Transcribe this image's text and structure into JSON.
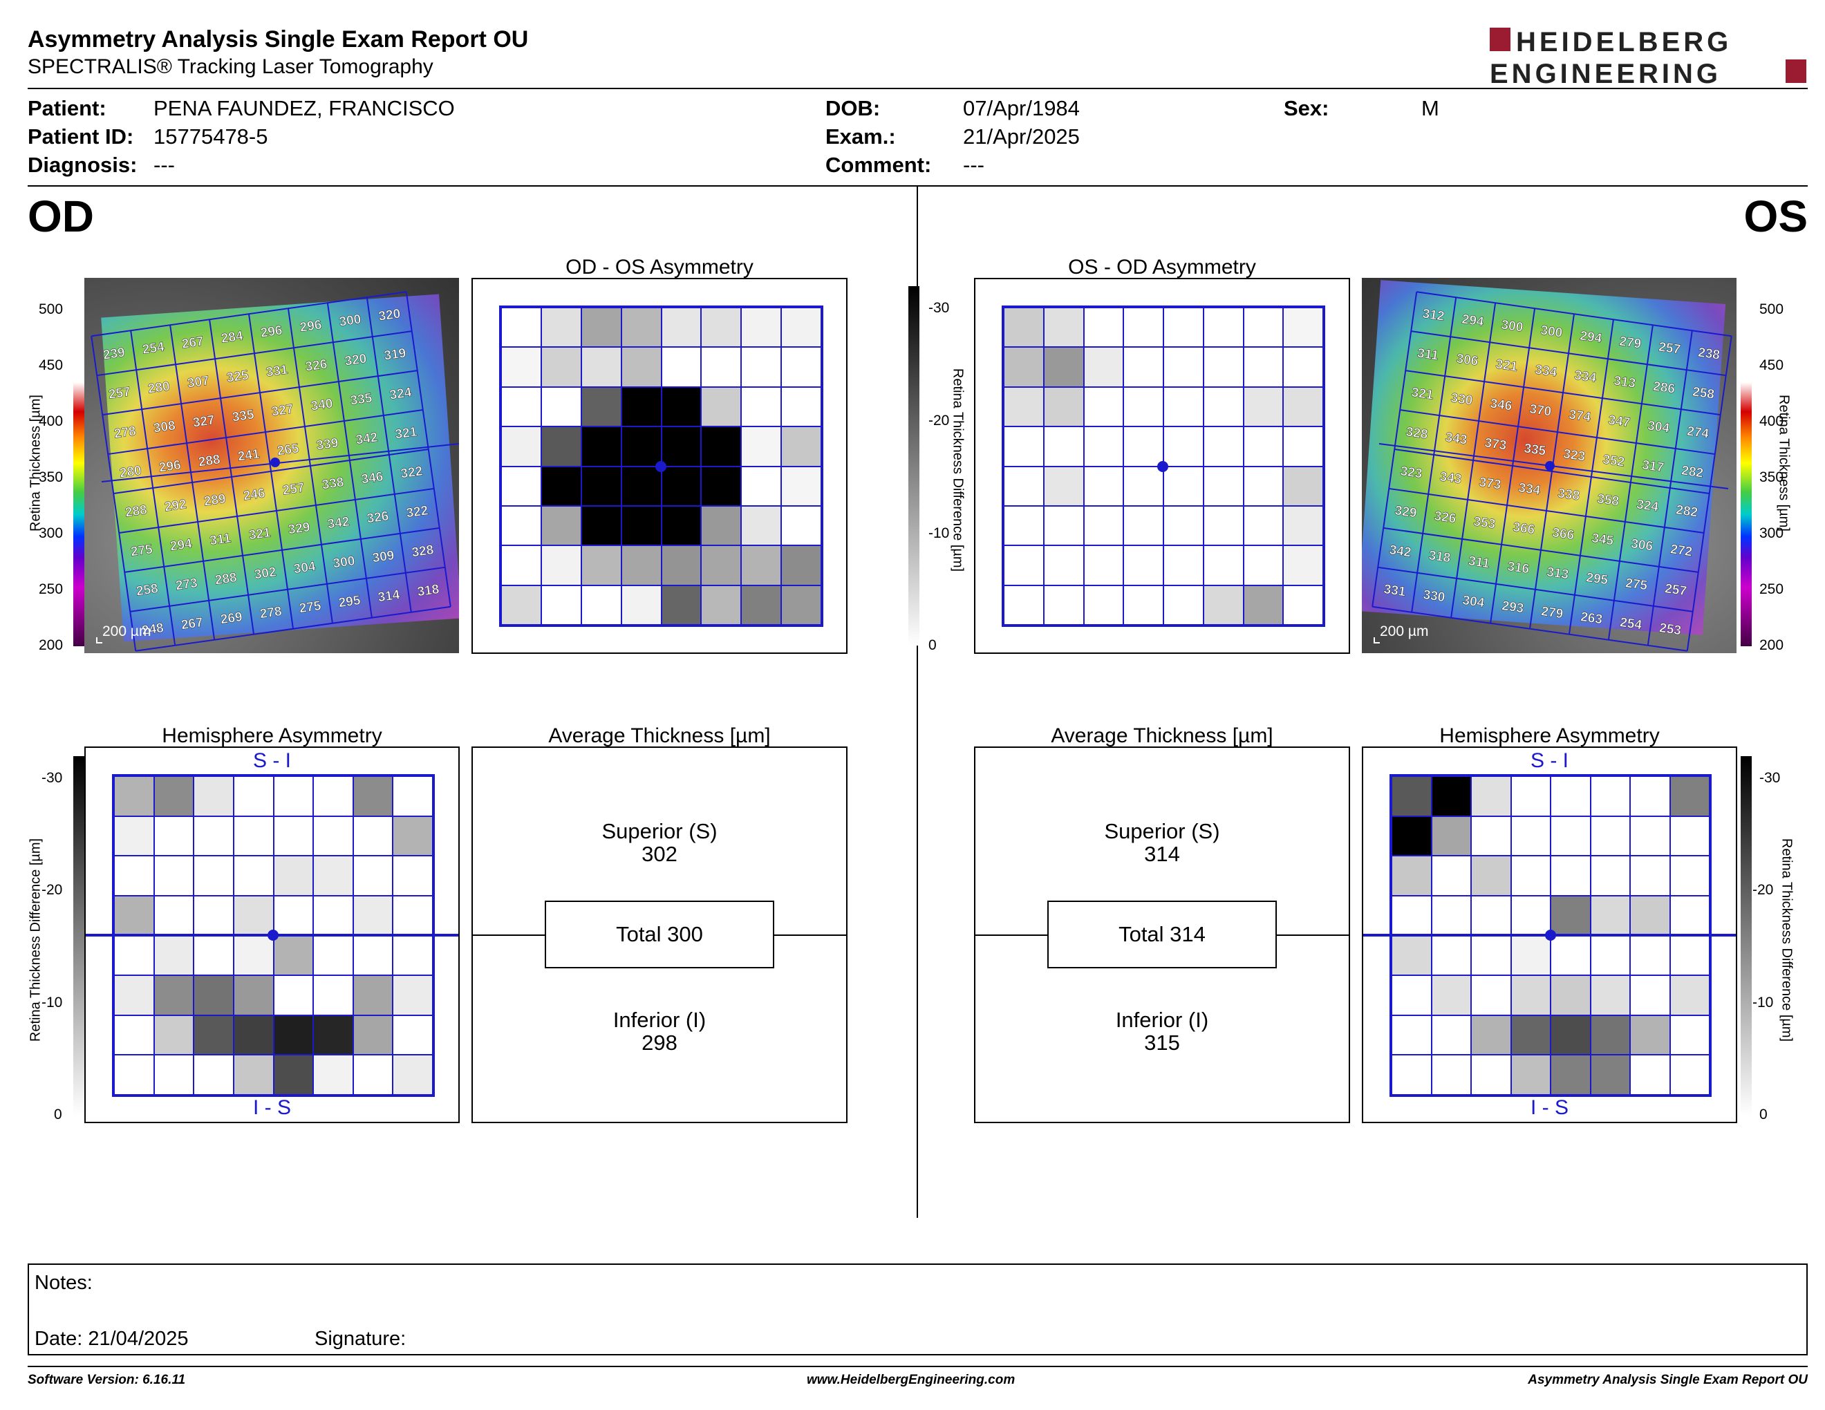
{
  "header": {
    "title": "Asymmetry Analysis Single Exam Report OU",
    "subtitle": "SPECTRALIS® Tracking Laser Tomography",
    "logo_line1": "HEIDELBERG",
    "logo_line2": "ENGINEERING",
    "brand_color": "#9b1b30"
  },
  "patient": {
    "patient_label": "Patient:",
    "patient": "PENA FAUNDEZ, FRANCISCO",
    "id_label": "Patient ID:",
    "id": "15775478-5",
    "diagnosis_label": "Diagnosis:",
    "diagnosis": "---",
    "dob_label": "DOB:",
    "dob": "07/Apr/1984",
    "exam_label": "Exam.:",
    "exam": "21/Apr/2025",
    "comment_label": "Comment:",
    "comment": "---",
    "sex_label": "Sex:",
    "sex": "M"
  },
  "od": {
    "eye": "OD",
    "asym_title": "OD - OS Asymmetry",
    "hemi_title": "Hemisphere Asymmetry",
    "avg_title": "Average Thickness [µm]",
    "superior_label": "Superior (S)",
    "superior": "302",
    "total": "Total 300",
    "inferior_label": "Inferior (I)",
    "inferior": "298",
    "scale_label": "200 µm",
    "si_label": "S - I",
    "is_label": "I - S",
    "thickness": [
      [
        239,
        254,
        267,
        284,
        296,
        296,
        300,
        320
      ],
      [
        257,
        280,
        307,
        325,
        331,
        326,
        320,
        319
      ],
      [
        278,
        308,
        327,
        335,
        327,
        340,
        335,
        324
      ],
      [
        280,
        296,
        288,
        241,
        265,
        339,
        342,
        321
      ],
      [
        288,
        292,
        289,
        246,
        257,
        338,
        346,
        322
      ],
      [
        275,
        294,
        311,
        321,
        329,
        342,
        326,
        322
      ],
      [
        258,
        273,
        288,
        302,
        304,
        300,
        309,
        328
      ],
      [
        248,
        267,
        269,
        278,
        275,
        295,
        314,
        318
      ]
    ],
    "asym_gray": [
      [
        0,
        0.12,
        0.35,
        0.28,
        0.1,
        0.12,
        0.05,
        0.05
      ],
      [
        0.04,
        0.18,
        0.12,
        0.25,
        0,
        0,
        0,
        0
      ],
      [
        0,
        0,
        0.62,
        1,
        1,
        0.2,
        0,
        0
      ],
      [
        0.06,
        0.65,
        1,
        1,
        1,
        1,
        0.04,
        0.22
      ],
      [
        0,
        1,
        1,
        1,
        1,
        1,
        0,
        0.04
      ],
      [
        0,
        0.35,
        1,
        1,
        1,
        0.4,
        0.1,
        0
      ],
      [
        0,
        0.05,
        0.28,
        0.35,
        0.42,
        0.35,
        0.3,
        0.45
      ],
      [
        0.15,
        0,
        0,
        0.05,
        0.6,
        0.28,
        0.5,
        0.4
      ]
    ],
    "hemi_gray": [
      [
        0.3,
        0.45,
        0.1,
        0,
        0,
        0,
        0.45,
        0
      ],
      [
        0.06,
        0,
        0,
        0,
        0,
        0,
        0,
        0.3
      ],
      [
        0,
        0,
        0,
        0,
        0.1,
        0.08,
        0,
        0
      ],
      [
        0.3,
        0,
        0,
        0.12,
        0,
        0,
        0.08,
        0
      ],
      [
        0,
        0.08,
        0,
        0.05,
        0.3,
        0,
        0,
        0
      ],
      [
        0.08,
        0.45,
        0.55,
        0.4,
        0,
        0,
        0.35,
        0.08
      ],
      [
        0,
        0.2,
        0.65,
        0.75,
        0.88,
        0.85,
        0.35,
        0
      ],
      [
        0,
        0,
        0,
        0.22,
        0.7,
        0.05,
        0,
        0.08
      ]
    ]
  },
  "os": {
    "eye": "OS",
    "asym_title": "OS - OD Asymmetry",
    "hemi_title": "Hemisphere Asymmetry",
    "avg_title": "Average Thickness [µm]",
    "superior_label": "Superior (S)",
    "superior": "314",
    "total": "Total 314",
    "inferior_label": "Inferior (I)",
    "inferior": "315",
    "scale_label": "200 µm",
    "si_label": "S - I",
    "is_label": "I - S",
    "thickness": [
      [
        312,
        294,
        300,
        300,
        294,
        279,
        257,
        238
      ],
      [
        311,
        306,
        321,
        334,
        334,
        313,
        286,
        258
      ],
      [
        321,
        330,
        346,
        370,
        374,
        347,
        304,
        274
      ],
      [
        328,
        343,
        373,
        335,
        323,
        352,
        317,
        282
      ],
      [
        323,
        343,
        373,
        334,
        338,
        358,
        324,
        282
      ],
      [
        329,
        326,
        353,
        366,
        366,
        345,
        306,
        272
      ],
      [
        342,
        318,
        311,
        316,
        313,
        295,
        275,
        257
      ],
      [
        331,
        330,
        304,
        293,
        279,
        263,
        254,
        253
      ]
    ],
    "asym_gray": [
      [
        0.2,
        0.12,
        0,
        0,
        0,
        0,
        0,
        0.04
      ],
      [
        0.25,
        0.4,
        0.08,
        0,
        0,
        0,
        0,
        0
      ],
      [
        0.12,
        0.18,
        0,
        0,
        0,
        0,
        0.1,
        0.12
      ],
      [
        0,
        0,
        0,
        0,
        0,
        0,
        0,
        0
      ],
      [
        0,
        0.1,
        0,
        0,
        0,
        0,
        0,
        0.18
      ],
      [
        0,
        0,
        0,
        0,
        0,
        0,
        0,
        0.08
      ],
      [
        0,
        0,
        0,
        0,
        0,
        0,
        0,
        0.05
      ],
      [
        0,
        0,
        0,
        0,
        0,
        0.15,
        0.35,
        0
      ]
    ],
    "hemi_gray": [
      [
        0.65,
        1,
        0.12,
        0,
        0,
        0,
        0,
        0.5
      ],
      [
        1,
        0.35,
        0,
        0,
        0,
        0,
        0,
        0
      ],
      [
        0.22,
        0,
        0.2,
        0,
        0,
        0,
        0,
        0
      ],
      [
        0,
        0,
        0,
        0,
        0.5,
        0.15,
        0.2,
        0
      ],
      [
        0.15,
        0,
        0,
        0.05,
        0,
        0,
        0,
        0
      ],
      [
        0,
        0.12,
        0,
        0.15,
        0.2,
        0.12,
        0,
        0.12
      ],
      [
        0,
        0,
        0.3,
        0.6,
        0.7,
        0.55,
        0.3,
        0
      ],
      [
        0,
        0,
        0,
        0.25,
        0.5,
        0.5,
        0,
        0
      ]
    ]
  },
  "thickness_scale": {
    "ticks": [
      "500",
      "450",
      "400",
      "350",
      "300",
      "250",
      "200"
    ],
    "label": "Retina  Thickness [µm]",
    "label_right": "Retina  Thickness [µm]"
  },
  "diff_scale": {
    "ticks": [
      "-30",
      "-20",
      "-10",
      "0"
    ],
    "label": "Retina Thickness Difference [µm]"
  },
  "notes": {
    "notes_label": "Notes:",
    "date_label": "Date: 21/04/2025",
    "signature_label": "Signature:"
  },
  "footer": {
    "software": "Software Version: 6.16.11",
    "website": "www.HeidelbergEngineering.com",
    "report": "Asymmetry Analysis Single Exam Report OU"
  }
}
